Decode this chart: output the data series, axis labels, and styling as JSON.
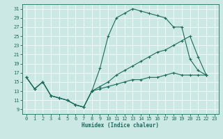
{
  "bg_color": "#cce8e4",
  "line_color": "#1a6b5a",
  "xlabel": "Humidex (Indice chaleur)",
  "xlim": [
    -0.5,
    23.5
  ],
  "ylim": [
    8,
    32
  ],
  "xticks": [
    0,
    1,
    2,
    3,
    4,
    5,
    6,
    7,
    8,
    9,
    10,
    11,
    12,
    13,
    14,
    15,
    16,
    17,
    18,
    19,
    20,
    21,
    22,
    23
  ],
  "yticks": [
    9,
    11,
    13,
    15,
    17,
    19,
    21,
    23,
    25,
    27,
    29,
    31
  ],
  "curve1_x": [
    0,
    1,
    2,
    3,
    4,
    5,
    6,
    7,
    8,
    9,
    10,
    11,
    12,
    13,
    14,
    15,
    16,
    17,
    18,
    19,
    20,
    21,
    22
  ],
  "curve1_y": [
    16,
    13.5,
    15,
    12,
    11.5,
    11,
    10,
    9.5,
    13,
    18,
    25,
    29,
    30,
    31,
    30.5,
    30,
    29.5,
    29,
    27,
    27,
    20,
    17.5,
    16.5
  ],
  "curve2_x": [
    0,
    1,
    2,
    3,
    4,
    5,
    6,
    7,
    8,
    9,
    10,
    11,
    12,
    13,
    14,
    15,
    16,
    17,
    18,
    19,
    20,
    21,
    22
  ],
  "curve2_y": [
    16,
    13.5,
    15,
    12,
    11.5,
    11,
    10,
    9.5,
    13,
    14,
    15,
    16.5,
    17.5,
    18.5,
    19.5,
    20.5,
    21.5,
    22,
    23,
    24,
    25,
    20.5,
    16.5
  ],
  "curve3_x": [
    0,
    1,
    2,
    3,
    4,
    5,
    6,
    7,
    8,
    9,
    10,
    11,
    12,
    13,
    14,
    15,
    16,
    17,
    18,
    19,
    20,
    21,
    22
  ],
  "curve3_y": [
    16,
    13.5,
    15,
    12,
    11.5,
    11,
    10,
    9.5,
    13,
    13.5,
    14,
    14.5,
    15,
    15.5,
    15.5,
    16,
    16,
    16.5,
    17,
    16.5,
    16.5,
    16.5,
    16.5
  ]
}
